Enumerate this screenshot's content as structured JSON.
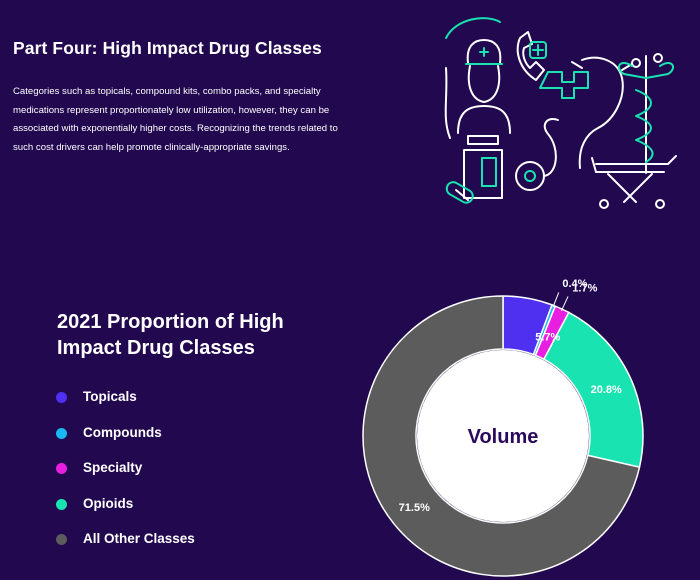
{
  "header": {
    "title": "Part Four: High Impact Drug Classes",
    "description": "Categories such as topicals, compound kits, combo packs, and specialty medications represent proportionately low utilization, however, they can be associated with exponentially higher costs. Recognizing the trends related to such cost drivers can help promote clinically-appropriate savings."
  },
  "illustration": {
    "icons": [
      "nurse-icon",
      "medicine-bottle-icon",
      "pill-icon",
      "phone-cross-icon",
      "stethoscope-icon",
      "caduceus-icon",
      "gurney-icon"
    ]
  },
  "chart_data": {
    "type": "pie",
    "variant": "donut",
    "title": "2021 Proportion of High Impact Drug Classes",
    "center_label": "Volume",
    "legend_position": "left",
    "series": [
      {
        "name": "Topicals",
        "value": 5.7,
        "label": "5.7%",
        "color": "#4f2ff0"
      },
      {
        "name": "Compounds",
        "value": 0.4,
        "label": "0.4%",
        "color": "#1ab8f2"
      },
      {
        "name": "Specialty",
        "value": 1.7,
        "label": "1.7%",
        "color": "#e81ee0"
      },
      {
        "name": "Opioids",
        "value": 20.8,
        "label": "20.8%",
        "color": "#19e3b0"
      },
      {
        "name": "All Other Classes",
        "value": 71.5,
        "label": "71.5%",
        "color": "#5c5c5c"
      }
    ]
  }
}
